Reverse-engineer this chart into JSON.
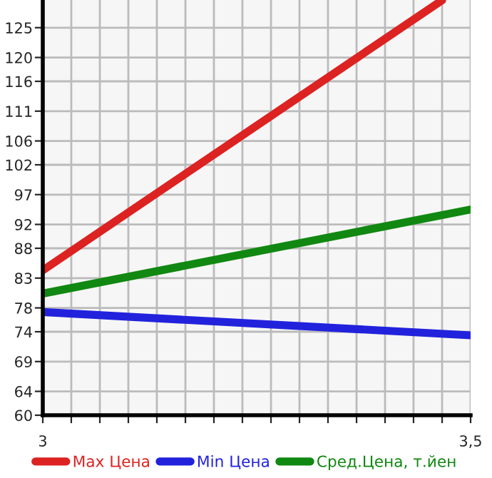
{
  "chart_data": {
    "type": "line",
    "x": [
      3,
      3.5
    ],
    "series": [
      {
        "name": "Max Цена",
        "color": "#dd2222",
        "x": [
          3,
          3.4667
        ],
        "values": [
          84.3,
          129.6
        ]
      },
      {
        "name": "Min Цена",
        "color": "#2222dd",
        "values": [
          77.3,
          73.4
        ]
      },
      {
        "name": "Сред.Цена, т.йен",
        "color": "#118811",
        "values": [
          80.4,
          94.5
        ]
      }
    ],
    "xlim": [
      3,
      3.5
    ],
    "xticks": [
      3,
      {
        "value": 3.0333,
        "label": null
      },
      {
        "value": 3.0667,
        "label": null
      },
      {
        "value": 3.1,
        "label": null
      },
      {
        "value": 3.1333,
        "label": null
      },
      {
        "value": 3.1667,
        "label": null
      },
      {
        "value": 3.2,
        "label": null
      },
      {
        "value": 3.2333,
        "label": null
      },
      {
        "value": 3.2667,
        "label": null
      },
      {
        "value": 3.3,
        "label": null
      },
      {
        "value": 3.3333,
        "label": null
      },
      {
        "value": 3.3667,
        "label": null
      },
      {
        "value": 3.4,
        "label": null
      },
      {
        "value": 3.4333,
        "label": null
      },
      {
        "value": 3.4667,
        "label": null
      },
      {
        "value": 3.5,
        "label": "3,5"
      }
    ],
    "ylim": [
      60,
      129.64
    ],
    "yticks": [
      60,
      64,
      69,
      74,
      78,
      83,
      88,
      92,
      97,
      102,
      106,
      111,
      116,
      120,
      125
    ],
    "grid": true,
    "legend": "bottom",
    "marker": "none",
    "line_style": "solid"
  }
}
